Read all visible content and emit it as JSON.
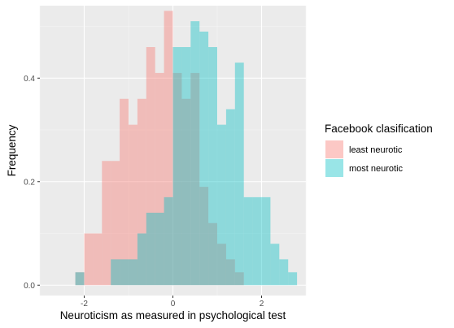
{
  "chart_data": {
    "type": "bar",
    "subtype": "overlapping-histogram",
    "xlabel": "Neuroticism as measured in psychological test",
    "ylabel": "Frequency",
    "xlim": [
      -3.0,
      3.0
    ],
    "ylim": [
      -0.02,
      0.54
    ],
    "x_ticks": [
      {
        "value": -2,
        "label": "-2"
      },
      {
        "value": 0,
        "label": "0"
      },
      {
        "value": 2,
        "label": "2"
      }
    ],
    "y_ticks": [
      {
        "value": 0.0,
        "label": "0.0"
      },
      {
        "value": 0.2,
        "label": "0.2"
      },
      {
        "value": 0.4,
        "label": "0.4"
      }
    ],
    "x_minor_ticks": [
      -3,
      -1,
      1,
      3
    ],
    "y_minor_ticks": [
      0.1,
      0.3,
      0.5
    ],
    "bin_width": 0.2,
    "grid": true,
    "legend": {
      "title": "Facebook clasification",
      "position": "right"
    },
    "series": [
      {
        "name": "least neurotic",
        "color": "#F8766D",
        "bins": [
          {
            "x0": -2.2,
            "value": 0.025
          },
          {
            "x0": -2.0,
            "value": 0.1
          },
          {
            "x0": -1.8,
            "value": 0.1
          },
          {
            "x0": -1.6,
            "value": 0.24
          },
          {
            "x0": -1.4,
            "value": 0.24
          },
          {
            "x0": -1.2,
            "value": 0.36
          },
          {
            "x0": -1.0,
            "value": 0.31
          },
          {
            "x0": -0.8,
            "value": 0.36
          },
          {
            "x0": -0.6,
            "value": 0.46
          },
          {
            "x0": -0.4,
            "value": 0.41
          },
          {
            "x0": -0.2,
            "value": 0.53
          },
          {
            "x0": 0.0,
            "value": 0.41
          },
          {
            "x0": 0.2,
            "value": 0.36
          },
          {
            "x0": 0.4,
            "value": 0.41
          },
          {
            "x0": 0.6,
            "value": 0.19
          },
          {
            "x0": 0.8,
            "value": 0.12
          },
          {
            "x0": 1.0,
            "value": 0.08
          },
          {
            "x0": 1.2,
            "value": 0.05
          },
          {
            "x0": 1.4,
            "value": 0.025
          }
        ]
      },
      {
        "name": "most neurotic",
        "color": "#00BFC4",
        "bins": [
          {
            "x0": -2.2,
            "value": 0.025
          },
          {
            "x0": -1.4,
            "value": 0.05
          },
          {
            "x0": -1.2,
            "value": 0.05
          },
          {
            "x0": -1.0,
            "value": 0.05
          },
          {
            "x0": -0.8,
            "value": 0.1
          },
          {
            "x0": -0.6,
            "value": 0.14
          },
          {
            "x0": -0.4,
            "value": 0.14
          },
          {
            "x0": -0.2,
            "value": 0.17
          },
          {
            "x0": 0.0,
            "value": 0.46
          },
          {
            "x0": 0.2,
            "value": 0.46
          },
          {
            "x0": 0.4,
            "value": 0.51
          },
          {
            "x0": 0.6,
            "value": 0.49
          },
          {
            "x0": 0.8,
            "value": 0.46
          },
          {
            "x0": 1.0,
            "value": 0.31
          },
          {
            "x0": 1.2,
            "value": 0.34
          },
          {
            "x0": 1.4,
            "value": 0.43
          },
          {
            "x0": 1.6,
            "value": 0.17
          },
          {
            "x0": 1.8,
            "value": 0.17
          },
          {
            "x0": 2.0,
            "value": 0.17
          },
          {
            "x0": 2.2,
            "value": 0.08
          },
          {
            "x0": 2.4,
            "value": 0.05
          },
          {
            "x0": 2.6,
            "value": 0.025
          }
        ]
      }
    ]
  }
}
